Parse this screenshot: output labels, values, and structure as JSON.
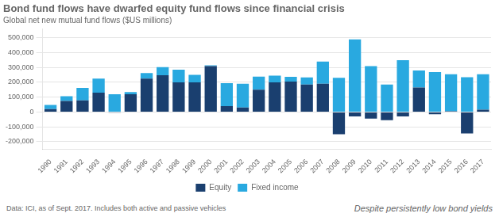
{
  "chart_data": {
    "type": "bar",
    "title": "Bond fund flows have dwarfed equity fund flows since financial crisis",
    "subtitle": "Global net new mutual fund flows ($US millions)",
    "annotations": [
      "Data: ICI, as of Sept. 2017. Includes both active and passive vehicles",
      "Despite persistently low bond yields"
    ],
    "categories": [
      "1990",
      "1991",
      "1992",
      "1993",
      "1994",
      "1995",
      "1996",
      "1997",
      "1998",
      "1999",
      "2000",
      "2001",
      "2002",
      "2003",
      "2004",
      "2005",
      "2006",
      "2007",
      "2008",
      "2009",
      "2010",
      "2011",
      "2012",
      "2013",
      "2014",
      "2015",
      "2016",
      "2017"
    ],
    "series": [
      {
        "name": "Equity",
        "color": "#1a3f6f",
        "values": [
          20000,
          75000,
          78000,
          130000,
          -5000,
          120000,
          225000,
          248000,
          200000,
          200000,
          310000,
          40000,
          30000,
          150000,
          200000,
          205000,
          185000,
          190000,
          -150000,
          -30000,
          -45000,
          -55000,
          -30000,
          165000,
          -15000,
          5000,
          -145000,
          15000
        ]
      },
      {
        "name": "Fixed income",
        "color": "#29a9e0",
        "values": [
          28000,
          32000,
          85000,
          95000,
          120000,
          15000,
          38000,
          55000,
          85000,
          50000,
          5000,
          155000,
          160000,
          88000,
          45000,
          32000,
          48000,
          150000,
          230000,
          490000,
          310000,
          185000,
          350000,
          115000,
          270000,
          250000,
          235000,
          240000
        ]
      }
    ],
    "stacked": true,
    "ylim": [
      -250000,
      560000
    ],
    "yticks": [
      {
        "value": -200000,
        "label": "-200,000"
      },
      {
        "value": -100000,
        "label": "-100,000"
      },
      0,
      {
        "value": 100000,
        "label": "100,000"
      },
      {
        "value": 200000,
        "label": "200,000"
      },
      {
        "value": 300000,
        "label": "300,000"
      },
      {
        "value": 400000,
        "label": "400,000"
      },
      {
        "value": 500000,
        "label": "500,000"
      }
    ],
    "grid": true,
    "legend": "bottom"
  }
}
